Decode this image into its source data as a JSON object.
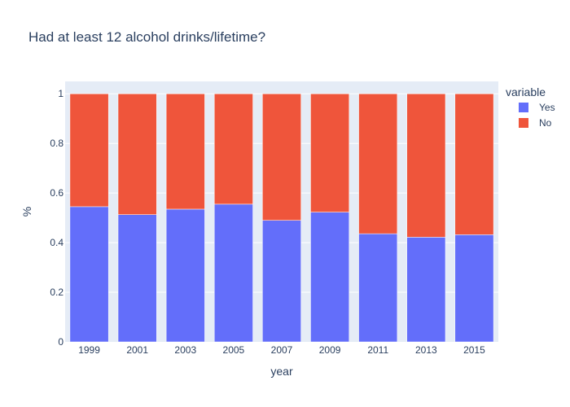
{
  "chart_data": {
    "type": "bar",
    "stacked": true,
    "title": "Had at least 12 alcohol drinks/lifetime?",
    "xlabel": "year",
    "ylabel": "%",
    "categories": [
      "1999",
      "2001",
      "2003",
      "2005",
      "2007",
      "2009",
      "2011",
      "2013",
      "2015"
    ],
    "series": [
      {
        "name": "Yes",
        "color": "#636efa",
        "values": [
          0.545,
          0.513,
          0.535,
          0.555,
          0.49,
          0.523,
          0.436,
          0.422,
          0.432
        ]
      },
      {
        "name": "No",
        "color": "#ef553b",
        "values": [
          0.455,
          0.487,
          0.465,
          0.445,
          0.51,
          0.477,
          0.564,
          0.578,
          0.568
        ]
      }
    ],
    "ylim": [
      0,
      1.05
    ],
    "yticks": [
      0,
      0.2,
      0.4,
      0.6,
      0.8,
      1
    ],
    "ytick_labels": [
      "0",
      "0.2",
      "0.4",
      "0.6",
      "0.8",
      "1"
    ],
    "legend": {
      "title": "variable",
      "position": "right"
    },
    "grid": true,
    "plot_bg": "#e5ecf6"
  }
}
